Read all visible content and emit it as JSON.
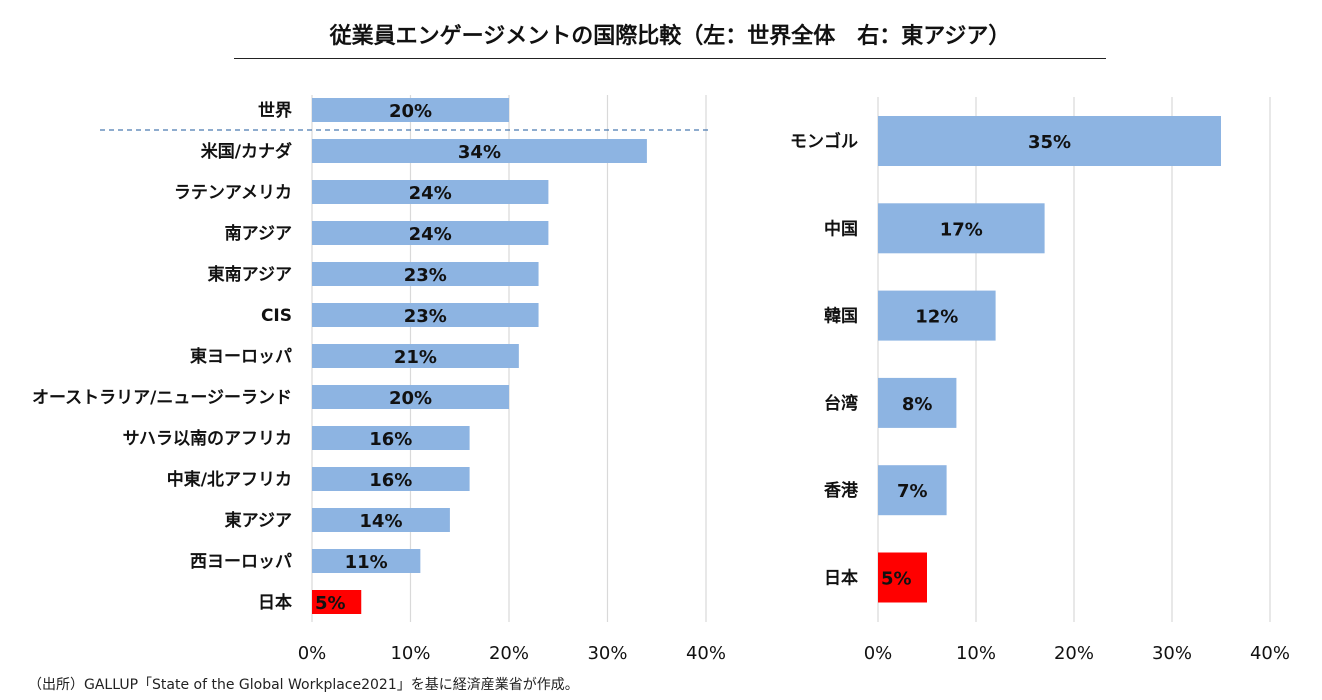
{
  "title": "従業員エンゲージメントの国際比較（左：世界全体　右：東アジア）",
  "source": "（出所）GALLUP「State of the Global Workplace2021」を基に経済産業省が作成。",
  "colors": {
    "bar": "#8db4e2",
    "highlight": "#ff0000",
    "grid": "#d9d9d9",
    "separator": "#4a7ab0"
  },
  "chart_data": [
    {
      "type": "bar",
      "orientation": "horizontal",
      "categories": [
        "世界",
        "米国/カナダ",
        "ラテンアメリカ",
        "南アジア",
        "東南アジア",
        "CIS",
        "東ヨーロッパ",
        "オーストラリア/ニュージーランド",
        "サハラ以南のアフリカ",
        "中東/北アフリカ",
        "東アジア",
        "西ヨーロッパ",
        "日本"
      ],
      "values": [
        20,
        34,
        24,
        24,
        23,
        23,
        21,
        20,
        16,
        16,
        14,
        11,
        5
      ],
      "data_labels": [
        "20%",
        "34%",
        "24%",
        "24%",
        "23%",
        "23%",
        "21%",
        "20%",
        "16%",
        "16%",
        "14%",
        "11%",
        "5%"
      ],
      "highlight": [
        "日本"
      ],
      "xlim": [
        0,
        40
      ],
      "xticks": [
        "0%",
        "10%",
        "20%",
        "30%",
        "40%"
      ],
      "grid": true
    },
    {
      "type": "bar",
      "orientation": "horizontal",
      "categories": [
        "モンゴル",
        "中国",
        "韓国",
        "台湾",
        "香港",
        "日本"
      ],
      "values": [
        35,
        17,
        12,
        8,
        7,
        5
      ],
      "data_labels": [
        "35%",
        "17%",
        "12%",
        "8%",
        "7%",
        "5%"
      ],
      "highlight": [
        "日本"
      ],
      "xlim": [
        0,
        40
      ],
      "xticks": [
        "0%",
        "10%",
        "20%",
        "30%",
        "40%"
      ],
      "grid": true
    }
  ]
}
